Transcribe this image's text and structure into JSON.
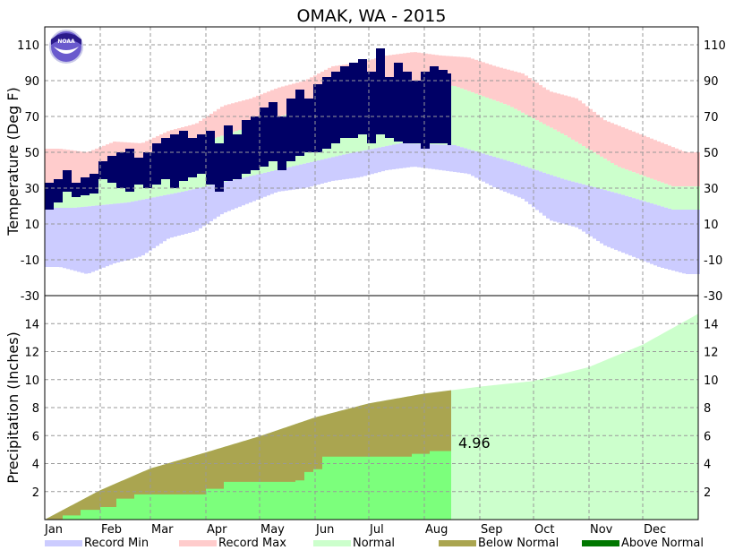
{
  "chart_data": [
    {
      "type": "bar",
      "title": "OMAK, WA - 2015",
      "ylabel": "Temperature (Deg F)",
      "ylim": [
        -30,
        120
      ],
      "yticks": [
        -30,
        -10,
        10,
        30,
        50,
        70,
        90,
        110
      ],
      "months": [
        "Jan",
        "Feb",
        "Mar",
        "Apr",
        "May",
        "Jun",
        "Jul",
        "Aug",
        "Sep",
        "Oct",
        "Nov",
        "Dec"
      ],
      "grid": true,
      "normal_high_monthly": [
        32,
        40,
        52,
        62,
        72,
        79,
        88,
        87,
        76,
        60,
        42,
        31
      ],
      "normal_low_monthly": [
        19,
        22,
        28,
        35,
        42,
        49,
        55,
        54,
        45,
        35,
        27,
        18
      ],
      "record_max_semimonthly": [
        52,
        50,
        56,
        55,
        62,
        66,
        76,
        80,
        86,
        90,
        98,
        100,
        104,
        106,
        104,
        103,
        98,
        94,
        84,
        80,
        68,
        62,
        56,
        50
      ],
      "record_min_semimonthly": [
        -14,
        -18,
        -12,
        -8,
        2,
        6,
        16,
        22,
        28,
        30,
        34,
        36,
        40,
        42,
        40,
        38,
        30,
        24,
        12,
        8,
        -2,
        -8,
        -14,
        -18
      ],
      "observed_block_days": 5,
      "observed_high": [
        33,
        35,
        40,
        33,
        36,
        38,
        45,
        48,
        50,
        52,
        47,
        50,
        55,
        58,
        60,
        62,
        58,
        60,
        62,
        55,
        65,
        60,
        68,
        70,
        75,
        78,
        70,
        80,
        85,
        80,
        88,
        92,
        95,
        98,
        100,
        102,
        95,
        108,
        92,
        100,
        95,
        90,
        95,
        98,
        96,
        94
      ],
      "observed_low": [
        18,
        22,
        28,
        25,
        26,
        27,
        35,
        33,
        30,
        28,
        32,
        30,
        32,
        35,
        30,
        34,
        36,
        38,
        32,
        28,
        34,
        35,
        38,
        40,
        42,
        45,
        40,
        45,
        48,
        50,
        50,
        52,
        55,
        58,
        58,
        60,
        55,
        60,
        58,
        56,
        55,
        55,
        52,
        55,
        55,
        54
      ]
    },
    {
      "type": "area",
      "ylabel": "Precipitation (Inches)",
      "ylim": [
        0,
        16
      ],
      "yticks": [
        2,
        4,
        6,
        8,
        10,
        12,
        14
      ],
      "normal_cumulative": {
        "days": [
          0,
          31,
          59,
          90,
          120,
          151,
          181,
          212,
          243,
          273,
          304,
          334,
          365
        ],
        "values": [
          0,
          2.1,
          3.65,
          4.8,
          5.95,
          7.3,
          8.3,
          9.0,
          9.5,
          9.9,
          10.9,
          12.5,
          14.7
        ]
      },
      "observed_cumulative": {
        "days": [
          0,
          10,
          20,
          31,
          40,
          50,
          59,
          75,
          90,
          100,
          120,
          140,
          145,
          150,
          155,
          190,
          205,
          215,
          227
        ],
        "values": [
          0,
          0.3,
          0.7,
          0.9,
          1.5,
          1.8,
          1.8,
          1.8,
          2.2,
          2.7,
          2.7,
          2.8,
          3.4,
          3.6,
          4.5,
          4.5,
          4.7,
          4.9,
          4.96
        ]
      },
      "annotation": "4.96",
      "last_observed_day": 227
    }
  ],
  "legend": [
    {
      "label": "Record Min",
      "color": "#ccccff"
    },
    {
      "label": "Record Max",
      "color": "#ffcccc"
    },
    {
      "label": "Normal",
      "color": "#ccffcc"
    },
    {
      "label": "Below Normal",
      "color": "#aaa550"
    },
    {
      "label": "Above Normal",
      "color": "#007700"
    }
  ],
  "logo_text": "NOAA",
  "colors": {
    "observed": "#000066",
    "obs_precip": "#7cff7c",
    "grid": "#999999"
  }
}
